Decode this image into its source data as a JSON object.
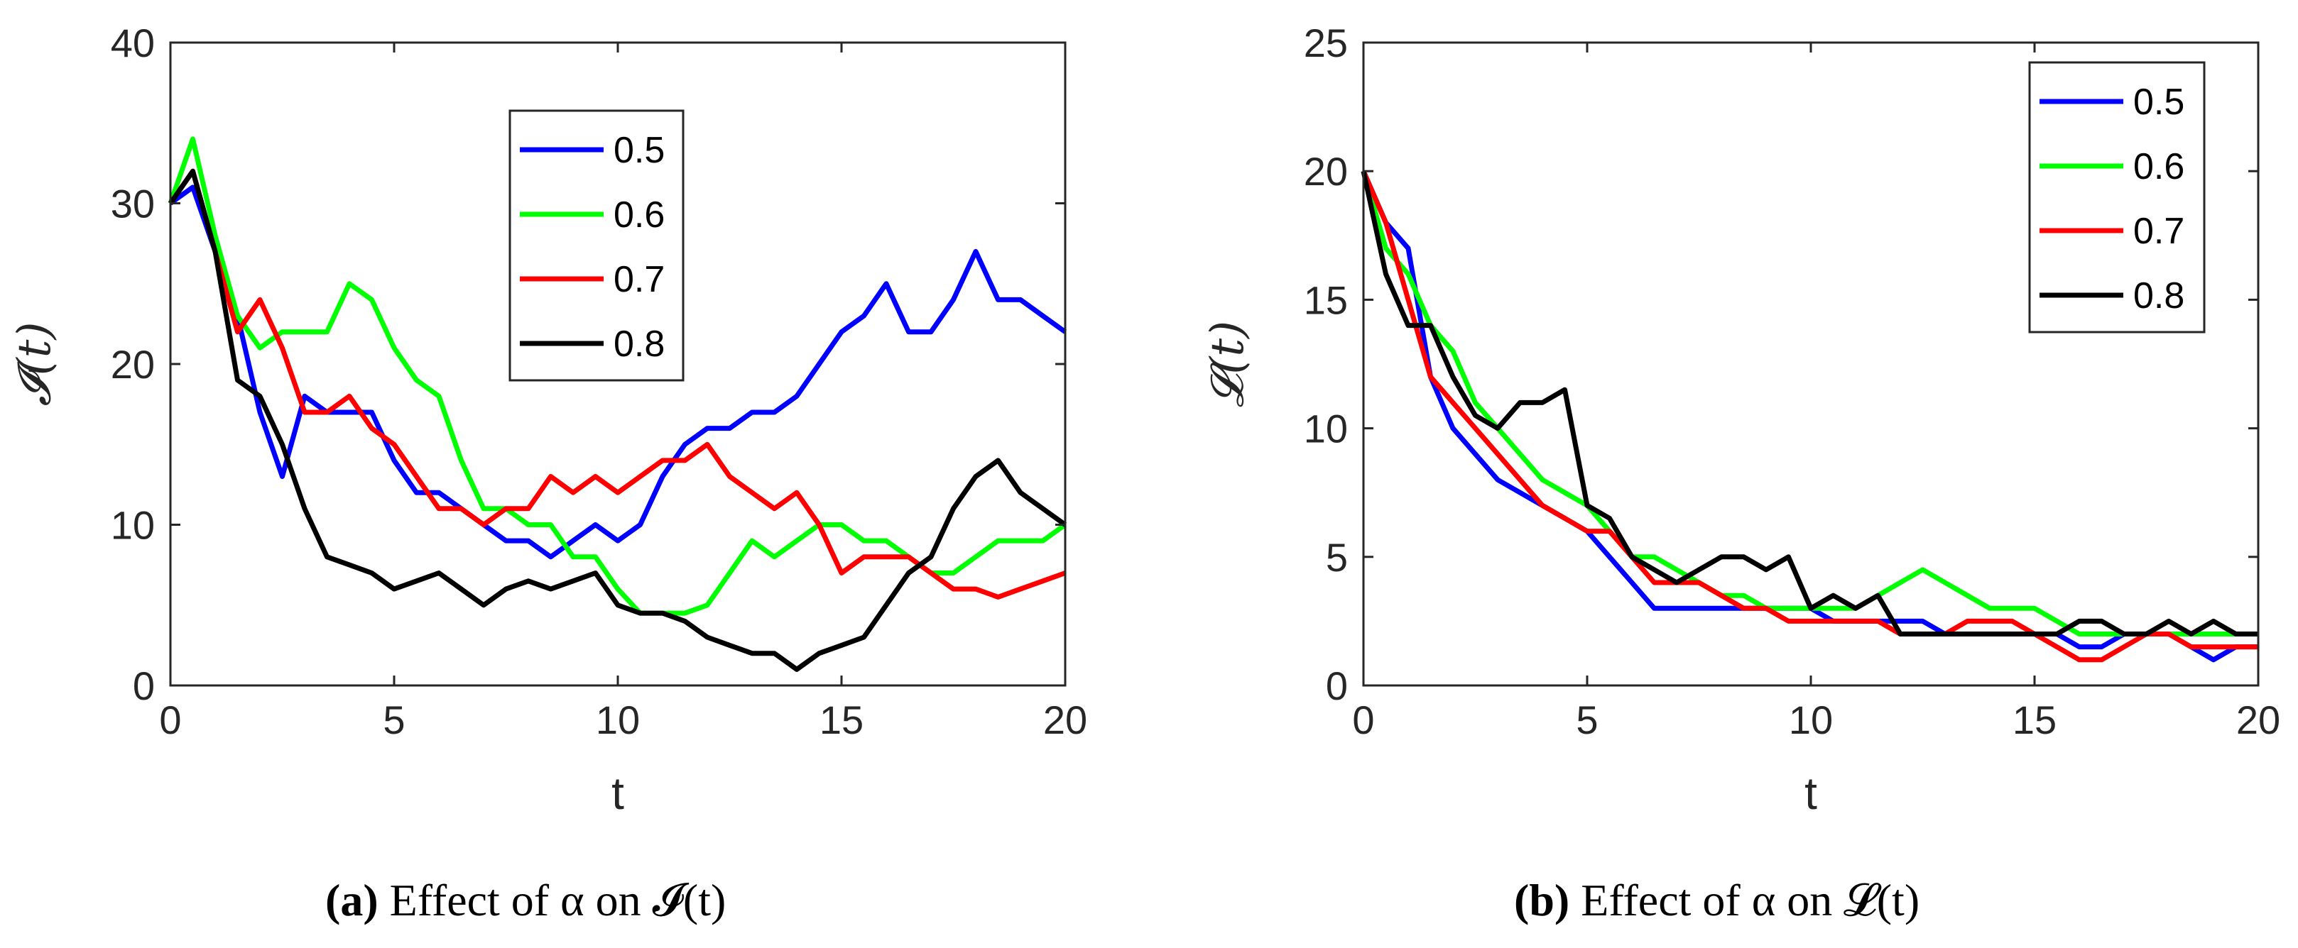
{
  "chart_data": [
    {
      "type": "line",
      "panel": "a",
      "xlabel": "t",
      "ylabel": "𝓘(t)",
      "xlim": [
        0,
        20
      ],
      "ylim": [
        0,
        40
      ],
      "xticks": [
        "0",
        "5",
        "10",
        "15",
        "20"
      ],
      "yticks": [
        "0",
        "10",
        "20",
        "30",
        "40"
      ],
      "legend_position": "upper-middle",
      "caption": {
        "tag": "(a)",
        "text": "Effect of α on 𝓘(t)"
      },
      "series": [
        {
          "name": "0.5",
          "color": "#0000ff",
          "x": [
            0,
            0.5,
            1,
            1.5,
            2,
            2.5,
            3,
            3.5,
            4,
            4.5,
            5,
            5.5,
            6,
            6.5,
            7,
            7.5,
            8,
            8.5,
            9,
            9.5,
            10,
            10.5,
            11,
            11.5,
            12,
            12.5,
            13,
            13.5,
            14,
            14.5,
            15,
            15.5,
            16,
            16.5,
            17,
            17.5,
            18,
            18.5,
            19,
            19.5,
            20
          ],
          "y": [
            30,
            31,
            27,
            23,
            17,
            13,
            18,
            17,
            17,
            17,
            14,
            12,
            12,
            11,
            10,
            9,
            9,
            8,
            9,
            10,
            9,
            10,
            13,
            15,
            16,
            16,
            17,
            17,
            18,
            20,
            22,
            23,
            25,
            22,
            22,
            24,
            27,
            24,
            24,
            23,
            22
          ]
        },
        {
          "name": "0.6",
          "color": "#00ff00",
          "x": [
            0,
            0.5,
            1,
            1.5,
            2,
            2.5,
            3,
            3.5,
            4,
            4.5,
            5,
            5.5,
            6,
            6.5,
            7,
            7.5,
            8,
            8.5,
            9,
            9.5,
            10,
            10.5,
            11,
            11.5,
            12,
            12.5,
            13,
            13.5,
            14,
            14.5,
            15,
            15.5,
            16,
            16.5,
            17,
            17.5,
            18,
            18.5,
            19,
            19.5,
            20
          ],
          "y": [
            30,
            34,
            28,
            23,
            21,
            22,
            22,
            22,
            25,
            24,
            21,
            19,
            18,
            14,
            11,
            11,
            10,
            10,
            8,
            8,
            6,
            4.5,
            4.5,
            4.5,
            5,
            7,
            9,
            8,
            9,
            10,
            10,
            9,
            9,
            8,
            7,
            7,
            8,
            9,
            9,
            9,
            10
          ]
        },
        {
          "name": "0.7",
          "color": "#ff0000",
          "x": [
            0,
            0.5,
            1,
            1.5,
            2,
            2.5,
            3,
            3.5,
            4,
            4.5,
            5,
            5.5,
            6,
            6.5,
            7,
            7.5,
            8,
            8.5,
            9,
            9.5,
            10,
            10.5,
            11,
            11.5,
            12,
            12.5,
            13,
            13.5,
            14,
            14.5,
            15,
            15.5,
            16,
            16.5,
            17,
            17.5,
            18,
            18.5,
            19,
            19.5,
            20
          ],
          "y": [
            30,
            32,
            27,
            22,
            24,
            21,
            17,
            17,
            18,
            16,
            15,
            13,
            11,
            11,
            10,
            11,
            11,
            13,
            12,
            13,
            12,
            13,
            14,
            14,
            15,
            13,
            12,
            11,
            12,
            10,
            7,
            8,
            8,
            8,
            7,
            6,
            6,
            5.5,
            6,
            6.5,
            7
          ]
        },
        {
          "name": "0.8",
          "color": "#000000",
          "x": [
            0,
            0.5,
            1,
            1.5,
            2,
            2.5,
            3,
            3.5,
            4,
            4.5,
            5,
            5.5,
            6,
            6.5,
            7,
            7.5,
            8,
            8.5,
            9,
            9.5,
            10,
            10.5,
            11,
            11.5,
            12,
            12.5,
            13,
            13.5,
            14,
            14.5,
            15,
            15.5,
            16,
            16.5,
            17,
            17.5,
            18,
            18.5,
            19,
            19.5,
            20
          ],
          "y": [
            30,
            32,
            27,
            19,
            18,
            15,
            11,
            8,
            7.5,
            7,
            6,
            6.5,
            7,
            6,
            5,
            6,
            6.5,
            6,
            6.5,
            7,
            5,
            4.5,
            4.5,
            4,
            3,
            2.5,
            2,
            2,
            1,
            2,
            2.5,
            3,
            5,
            7,
            8,
            11,
            13,
            14,
            12,
            11,
            10
          ]
        }
      ]
    },
    {
      "type": "line",
      "panel": "b",
      "xlabel": "t",
      "ylabel": "𝓛(t)",
      "xlim": [
        0,
        20
      ],
      "ylim": [
        0,
        25
      ],
      "xticks": [
        "0",
        "5",
        "10",
        "15",
        "20"
      ],
      "yticks": [
        "0",
        "5",
        "10",
        "15",
        "20",
        "25"
      ],
      "legend_position": "top-right",
      "caption": {
        "tag": "(b)",
        "text": "Effect of α on 𝓛(t)"
      },
      "series": [
        {
          "name": "0.5",
          "color": "#0000ff",
          "x": [
            0,
            0.5,
            1,
            1.5,
            2,
            2.5,
            3,
            3.5,
            4,
            4.5,
            5,
            5.5,
            6,
            6.5,
            7,
            7.5,
            8,
            8.5,
            9,
            9.5,
            10,
            10.5,
            11,
            11.5,
            12,
            12.5,
            13,
            13.5,
            14,
            14.5,
            15,
            15.5,
            16,
            16.5,
            17,
            17.5,
            18,
            18.5,
            19,
            19.5,
            20
          ],
          "y": [
            20,
            18,
            17,
            12,
            10,
            9,
            8,
            7.5,
            7,
            6.5,
            6,
            5,
            4,
            3,
            3,
            3,
            3,
            3,
            3,
            3,
            3,
            2.5,
            2.5,
            2.5,
            2.5,
            2.5,
            2,
            2,
            2,
            2,
            2,
            2,
            1.5,
            1.5,
            2,
            2,
            2,
            1.5,
            1,
            1.5,
            1.5
          ]
        },
        {
          "name": "0.6",
          "color": "#00ff00",
          "x": [
            0,
            0.5,
            1,
            1.5,
            2,
            2.5,
            3,
            3.5,
            4,
            4.5,
            5,
            5.5,
            6,
            6.5,
            7,
            7.5,
            8,
            8.5,
            9,
            9.5,
            10,
            10.5,
            11,
            11.5,
            12,
            12.5,
            13,
            13.5,
            14,
            14.5,
            15,
            15.5,
            16,
            16.5,
            17,
            17.5,
            18,
            18.5,
            19,
            19.5,
            20
          ],
          "y": [
            20,
            17,
            16,
            14,
            13,
            11,
            10,
            9,
            8,
            7.5,
            7,
            6,
            5,
            5,
            4.5,
            4,
            3.5,
            3.5,
            3,
            3,
            3,
            3,
            3,
            3.5,
            4,
            4.5,
            4,
            3.5,
            3,
            3,
            3,
            2.5,
            2,
            2,
            2,
            2,
            2,
            2,
            2,
            2,
            2
          ]
        },
        {
          "name": "0.7",
          "color": "#ff0000",
          "x": [
            0,
            0.5,
            1,
            1.5,
            2,
            2.5,
            3,
            3.5,
            4,
            4.5,
            5,
            5.5,
            6,
            6.5,
            7,
            7.5,
            8,
            8.5,
            9,
            9.5,
            10,
            10.5,
            11,
            11.5,
            12,
            12.5,
            13,
            13.5,
            14,
            14.5,
            15,
            15.5,
            16,
            16.5,
            17,
            17.5,
            18,
            18.5,
            19,
            19.5,
            20
          ],
          "y": [
            20,
            18,
            15,
            12,
            11,
            10,
            9,
            8,
            7,
            6.5,
            6,
            6,
            5,
            4,
            4,
            4,
            3.5,
            3,
            3,
            2.5,
            2.5,
            2.5,
            2.5,
            2.5,
            2,
            2,
            2,
            2.5,
            2.5,
            2.5,
            2,
            1.5,
            1,
            1,
            1.5,
            2,
            2,
            1.5,
            1.5,
            1.5,
            1.5
          ]
        },
        {
          "name": "0.8",
          "color": "#000000",
          "x": [
            0,
            0.5,
            1,
            1.5,
            2,
            2.5,
            3,
            3.5,
            4,
            4.5,
            5,
            5.5,
            6,
            6.5,
            7,
            7.5,
            8,
            8.5,
            9,
            9.5,
            10,
            10.5,
            11,
            11.5,
            12,
            12.5,
            13,
            13.5,
            14,
            14.5,
            15,
            15.5,
            16,
            16.5,
            17,
            17.5,
            18,
            18.5,
            19,
            19.5,
            20
          ],
          "y": [
            20,
            16,
            14,
            14,
            12,
            10.5,
            10,
            11,
            11,
            11.5,
            7,
            6.5,
            5,
            4.5,
            4,
            4.5,
            5,
            5,
            4.5,
            5,
            3,
            3.5,
            3,
            3.5,
            2,
            2,
            2,
            2,
            2,
            2,
            2,
            2,
            2.5,
            2.5,
            2,
            2,
            2.5,
            2,
            2.5,
            2,
            2
          ]
        }
      ]
    }
  ]
}
